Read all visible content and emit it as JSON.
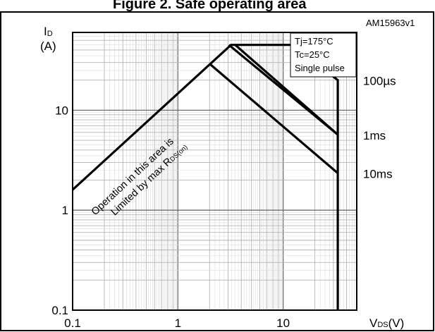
{
  "figure": {
    "title": "Figure 2. Safe operating area",
    "id": "AM15963v1"
  },
  "chart_data": {
    "type": "line",
    "title": "Figure 2. Safe operating area",
    "xlabel": {
      "main": "V",
      "sub": "DS",
      "unit": "(V)"
    },
    "ylabel": {
      "main": "I",
      "sub": "D",
      "unit": "(A)"
    },
    "xscale": "log",
    "yscale": "log",
    "xlim": [
      0.1,
      50
    ],
    "ylim": [
      0.1,
      60
    ],
    "grid": true,
    "x_ticks": [
      {
        "value": 0.1,
        "label": "0.1"
      },
      {
        "value": 1,
        "label": "1"
      },
      {
        "value": 10,
        "label": "10"
      }
    ],
    "y_ticks": [
      {
        "value": 0.1,
        "label": "0.1"
      },
      {
        "value": 1,
        "label": "1"
      },
      {
        "value": 10,
        "label": "10"
      }
    ],
    "conditions": [
      "Tj=175°C",
      "Tc=25°C",
      "Single pulse"
    ],
    "rds_label": {
      "line1": "Operation in this area is",
      "line2_main": "Limited by max R",
      "line2_sub": "DS(on)"
    },
    "series": [
      {
        "name": "",
        "x": [
          0.1,
          3.2,
          12.5,
          33,
          33
        ],
        "y": [
          1.6,
          45,
          45,
          20,
          0.1
        ]
      },
      {
        "name": "100µs",
        "x": [
          3.5,
          33
        ],
        "y": [
          45,
          5.7
        ]
      },
      {
        "name": "1ms",
        "x": [
          3.05,
          33
        ],
        "y": [
          45,
          5.7
        ]
      },
      {
        "name": "10ms",
        "x": [
          2.05,
          33
        ],
        "y": [
          28.5,
          2.35
        ]
      }
    ],
    "line_color": "#000000",
    "grid_color": "#b4b4b4",
    "background": "#ffffff"
  }
}
